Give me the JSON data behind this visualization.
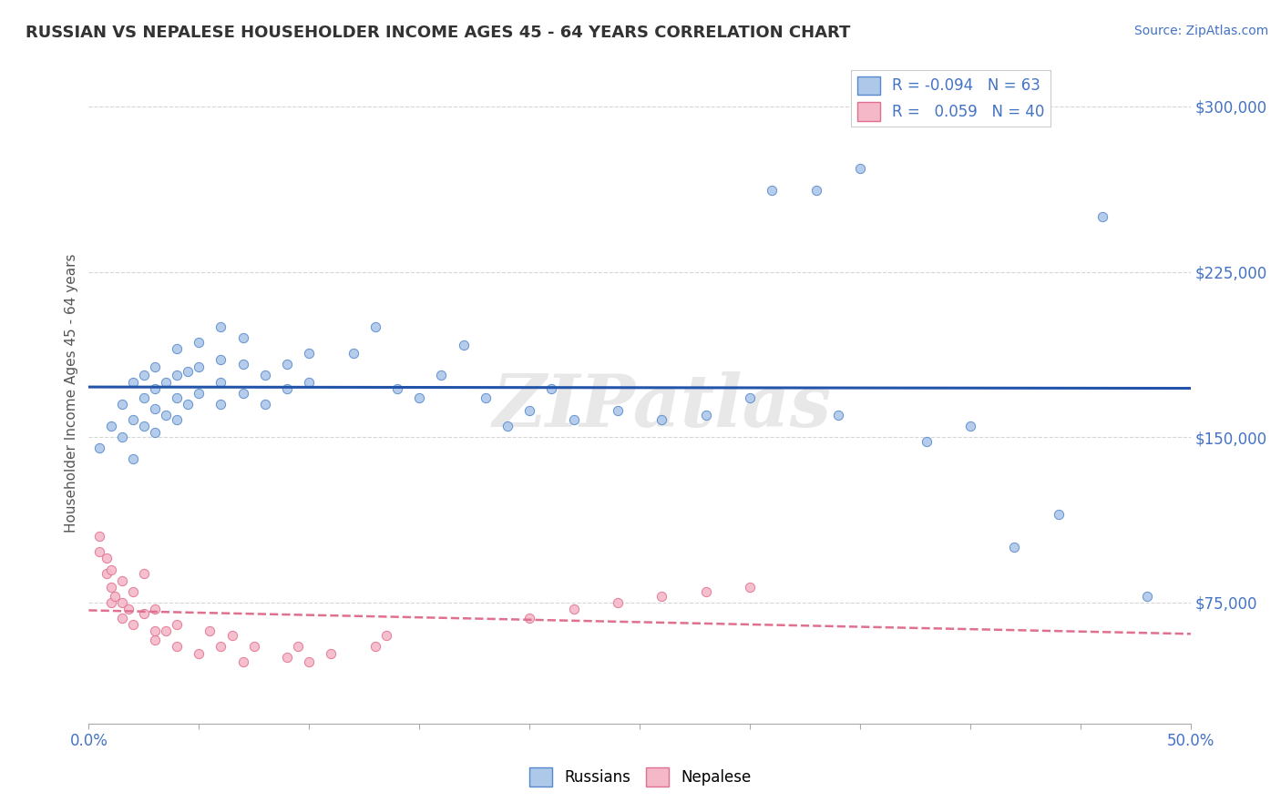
{
  "title": "RUSSIAN VS NEPALESE HOUSEHOLDER INCOME AGES 45 - 64 YEARS CORRELATION CHART",
  "source_text": "Source: ZipAtlas.com",
  "ylabel": "Householder Income Ages 45 - 64 years",
  "xlim": [
    0.0,
    0.5
  ],
  "ylim": [
    20000,
    320000
  ],
  "yticks": [
    75000,
    150000,
    225000,
    300000
  ],
  "ytick_labels": [
    "$75,000",
    "$150,000",
    "$225,000",
    "$300,000"
  ],
  "xticks": [
    0.0,
    0.05,
    0.1,
    0.15,
    0.2,
    0.25,
    0.3,
    0.35,
    0.4,
    0.45,
    0.5
  ],
  "russian_R": -0.094,
  "russian_N": 63,
  "nepalese_R": 0.059,
  "nepalese_N": 40,
  "russian_color": "#adc8e8",
  "russian_edge_color": "#5588cc",
  "nepalese_color": "#f5b8c8",
  "nepalese_edge_color": "#e07090",
  "russian_line_color": "#2255aa",
  "nepalese_line_color": "#e07090",
  "axis_color": "#4472c4",
  "watermark": "ZIPatlas",
  "background_color": "#ffffff",
  "russians_x": [
    0.005,
    0.01,
    0.015,
    0.015,
    0.02,
    0.02,
    0.02,
    0.025,
    0.025,
    0.025,
    0.03,
    0.03,
    0.03,
    0.03,
    0.035,
    0.035,
    0.04,
    0.04,
    0.04,
    0.04,
    0.045,
    0.045,
    0.05,
    0.05,
    0.05,
    0.06,
    0.06,
    0.06,
    0.06,
    0.07,
    0.07,
    0.07,
    0.08,
    0.08,
    0.09,
    0.09,
    0.1,
    0.1,
    0.12,
    0.13,
    0.14,
    0.15,
    0.16,
    0.17,
    0.18,
    0.19,
    0.2,
    0.21,
    0.22,
    0.24,
    0.26,
    0.28,
    0.3,
    0.31,
    0.33,
    0.34,
    0.35,
    0.38,
    0.4,
    0.42,
    0.44,
    0.46,
    0.48
  ],
  "russians_y": [
    145000,
    155000,
    150000,
    165000,
    140000,
    158000,
    175000,
    155000,
    168000,
    178000,
    152000,
    163000,
    172000,
    182000,
    160000,
    175000,
    158000,
    168000,
    178000,
    190000,
    165000,
    180000,
    170000,
    182000,
    193000,
    165000,
    175000,
    185000,
    200000,
    170000,
    183000,
    195000,
    165000,
    178000,
    172000,
    183000,
    175000,
    188000,
    188000,
    200000,
    172000,
    168000,
    178000,
    192000,
    168000,
    155000,
    162000,
    172000,
    158000,
    162000,
    158000,
    160000,
    168000,
    262000,
    262000,
    160000,
    272000,
    148000,
    155000,
    100000,
    115000,
    250000,
    78000
  ],
  "nepalese_x": [
    0.005,
    0.005,
    0.008,
    0.008,
    0.01,
    0.01,
    0.01,
    0.012,
    0.015,
    0.015,
    0.015,
    0.018,
    0.02,
    0.02,
    0.025,
    0.025,
    0.03,
    0.03,
    0.03,
    0.035,
    0.04,
    0.04,
    0.05,
    0.055,
    0.06,
    0.065,
    0.07,
    0.075,
    0.09,
    0.095,
    0.1,
    0.11,
    0.13,
    0.135,
    0.2,
    0.22,
    0.24,
    0.26,
    0.28,
    0.3
  ],
  "nepalese_y": [
    98000,
    105000,
    88000,
    95000,
    75000,
    82000,
    90000,
    78000,
    68000,
    75000,
    85000,
    72000,
    65000,
    80000,
    70000,
    88000,
    58000,
    62000,
    72000,
    62000,
    55000,
    65000,
    52000,
    62000,
    55000,
    60000,
    48000,
    55000,
    50000,
    55000,
    48000,
    52000,
    55000,
    60000,
    68000,
    72000,
    75000,
    78000,
    80000,
    82000
  ]
}
